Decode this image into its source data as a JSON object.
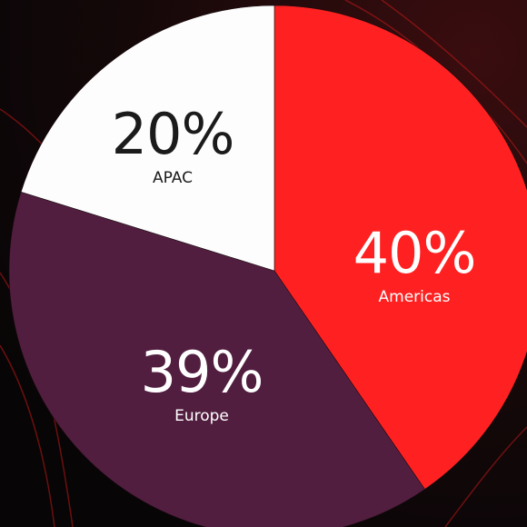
{
  "chart_data": {
    "type": "pie",
    "categories": [
      "Americas",
      "Europe",
      "APAC"
    ],
    "values": [
      40,
      39,
      20
    ],
    "value_labels": [
      "40%",
      "39%",
      "20%"
    ],
    "colors": [
      "#ff2121",
      "#521e40",
      "#fdfdfd"
    ]
  }
}
